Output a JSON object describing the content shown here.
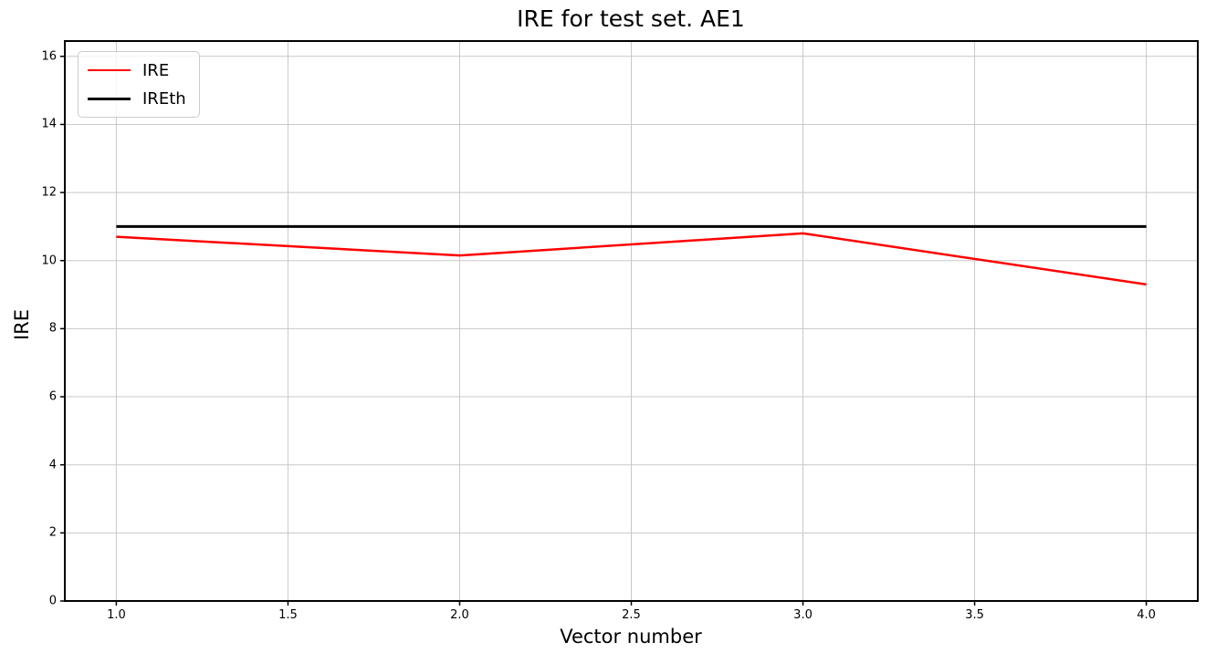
{
  "chart_data": {
    "type": "line",
    "title": "IRE for test set. AE1",
    "xlabel": "Vector number",
    "ylabel": "IRE",
    "x": [
      1,
      2,
      3,
      4
    ],
    "series": [
      {
        "name": "IRE",
        "color": "#ff0000",
        "linewidth": 2.5,
        "values": [
          10.7,
          10.15,
          10.8,
          9.3
        ]
      },
      {
        "name": "IREth",
        "color": "#000000",
        "linewidth": 3,
        "values": [
          11,
          11,
          11,
          11
        ]
      }
    ],
    "xlim": [
      0.85,
      4.15
    ],
    "ylim": [
      0,
      16.45
    ],
    "xticks": [
      1.0,
      1.5,
      2.0,
      2.5,
      3.0,
      3.5,
      4.0
    ],
    "xtick_labels": [
      "1.0",
      "1.5",
      "2.0",
      "2.5",
      "3.0",
      "3.5",
      "4.0"
    ],
    "yticks": [
      0,
      2,
      4,
      6,
      8,
      10,
      12,
      14,
      16
    ],
    "ytick_labels": [
      "0",
      "2",
      "4",
      "6",
      "8",
      "10",
      "12",
      "14",
      "16"
    ],
    "grid": true,
    "grid_color": "#c8c8c8",
    "spine_color": "#000000",
    "background_color": "#ffffff",
    "legend_position": "upper left"
  }
}
